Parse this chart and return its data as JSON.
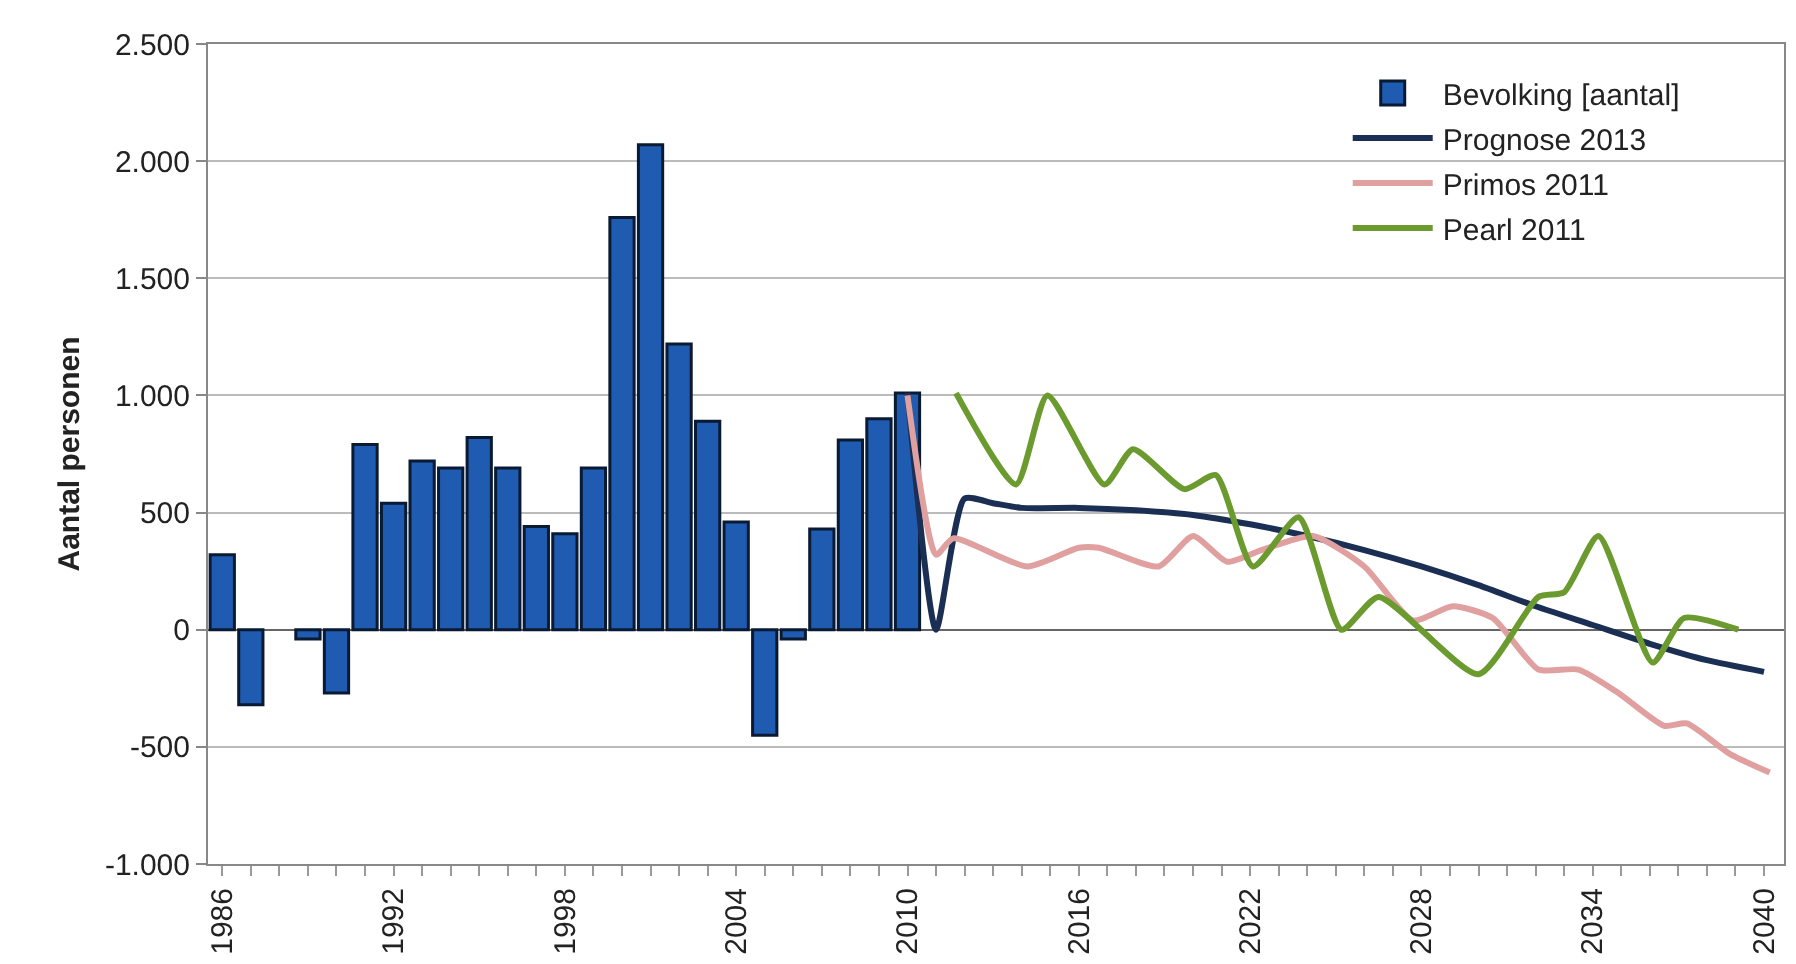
{
  "chart_data": {
    "type": "bar",
    "ylabel": "Aantal personen",
    "x": [
      1986,
      1987,
      1988,
      1989,
      1990,
      1991,
      1992,
      1993,
      1994,
      1995,
      1996,
      1997,
      1998,
      1999,
      2000,
      2001,
      2002,
      2003,
      2004,
      2005,
      2006,
      2007,
      2008,
      2009,
      2010
    ],
    "series": [
      {
        "name": "Bevolking [aantal]",
        "color": "#1f5bb0",
        "values": [
          320,
          -320,
          null,
          -40,
          -270,
          790,
          540,
          720,
          690,
          820,
          690,
          440,
          410,
          690,
          1760,
          2070,
          1220,
          890,
          460,
          -450,
          -40,
          430,
          810,
          900,
          1010
        ]
      },
      {
        "name": "Prognose 2013",
        "type": "line",
        "color": "#1b2f55",
        "x": [
          2010,
          2011,
          2012,
          2013,
          2014,
          2016,
          2018,
          2020,
          2022,
          2024,
          2026,
          2028,
          2030,
          2032,
          2034,
          2036,
          2038,
          2040
        ],
        "values": [
          1010,
          0,
          560,
          540,
          520,
          520,
          510,
          490,
          450,
          400,
          340,
          270,
          190,
          100,
          20,
          -60,
          -130,
          -180
        ]
      },
      {
        "name": "Primos 2011",
        "type": "line",
        "color": "#e0a0a0",
        "x": [
          2010,
          2011,
          2011.6,
          2014.2,
          2016,
          2016.7,
          2018.8,
          2020,
          2021.2,
          2022.4,
          2024.2,
          2026,
          2027.7,
          2029.1,
          2030.5,
          2032.1,
          2033.5,
          2034.9,
          2036.5,
          2037.3,
          2038.8,
          2040.2
        ],
        "values": [
          1000,
          320,
          390,
          270,
          350,
          350,
          270,
          400,
          290,
          340,
          400,
          270,
          40,
          100,
          50,
          -170,
          -170,
          -270,
          -410,
          -400,
          -530,
          -610
        ]
      },
      {
        "name": "Pearl 2011",
        "type": "line",
        "color": "#6b9a2e",
        "x": [
          2011.7,
          2013.8,
          2014.9,
          2016.9,
          2017.9,
          2019.7,
          2020.8,
          2022.1,
          2023.7,
          2025.2,
          2026.5,
          2030,
          2032.1,
          2033,
          2034.2,
          2036.1,
          2037.2,
          2039.1
        ],
        "values": [
          1010,
          620,
          1000,
          620,
          770,
          600,
          660,
          270,
          480,
          0,
          140,
          -190,
          140,
          160,
          400,
          -140,
          50,
          0
        ]
      }
    ],
    "xlim": [
      1985.5,
      2040.7
    ],
    "xticks": [
      {
        "value": 1986,
        "label": "1986"
      },
      {
        "value": 1987,
        "label": null
      },
      {
        "value": 1988,
        "label": null
      },
      {
        "value": 1989,
        "label": null
      },
      {
        "value": 1990,
        "label": null
      },
      {
        "value": 1991,
        "label": null
      },
      {
        "value": 1992,
        "label": "1992"
      },
      {
        "value": 1993,
        "label": null
      },
      {
        "value": 1994,
        "label": null
      },
      {
        "value": 1995,
        "label": null
      },
      {
        "value": 1996,
        "label": null
      },
      {
        "value": 1997,
        "label": null
      },
      {
        "value": 1998,
        "label": "1998"
      },
      {
        "value": 1999,
        "label": null
      },
      {
        "value": 2000,
        "label": null
      },
      {
        "value": 2001,
        "label": null
      },
      {
        "value": 2002,
        "label": null
      },
      {
        "value": 2003,
        "label": null
      },
      {
        "value": 2004,
        "label": "2004"
      },
      {
        "value": 2005,
        "label": null
      },
      {
        "value": 2006,
        "label": null
      },
      {
        "value": 2007,
        "label": null
      },
      {
        "value": 2008,
        "label": null
      },
      {
        "value": 2009,
        "label": null
      },
      {
        "value": 2010,
        "label": "2010"
      },
      {
        "value": 2011,
        "label": null
      },
      {
        "value": 2012,
        "label": null
      },
      {
        "value": 2013,
        "label": null
      },
      {
        "value": 2014,
        "label": null
      },
      {
        "value": 2015,
        "label": null
      },
      {
        "value": 2016,
        "label": "2016"
      },
      {
        "value": 2017,
        "label": null
      },
      {
        "value": 2018,
        "label": null
      },
      {
        "value": 2019,
        "label": null
      },
      {
        "value": 2020,
        "label": null
      },
      {
        "value": 2021,
        "label": null
      },
      {
        "value": 2022,
        "label": "2022"
      },
      {
        "value": 2023,
        "label": null
      },
      {
        "value": 2024,
        "label": null
      },
      {
        "value": 2025,
        "label": null
      },
      {
        "value": 2026,
        "label": null
      },
      {
        "value": 2027,
        "label": null
      },
      {
        "value": 2028,
        "label": "2028"
      },
      {
        "value": 2029,
        "label": null
      },
      {
        "value": 2030,
        "label": null
      },
      {
        "value": 2031,
        "label": null
      },
      {
        "value": 2032,
        "label": null
      },
      {
        "value": 2033,
        "label": null
      },
      {
        "value": 2034,
        "label": "2034"
      },
      {
        "value": 2035,
        "label": null
      },
      {
        "value": 2036,
        "label": null
      },
      {
        "value": 2037,
        "label": null
      },
      {
        "value": 2038,
        "label": null
      },
      {
        "value": 2039,
        "label": null
      },
      {
        "value": 2040,
        "label": "2040"
      }
    ],
    "ylim": [
      -1000,
      2500
    ],
    "yticks": [
      {
        "value": -1000,
        "label": "-1.000"
      },
      {
        "value": -500,
        "label": "-500"
      },
      {
        "value": 0,
        "label": "0"
      },
      {
        "value": 500,
        "label": "500"
      },
      {
        "value": 1000,
        "label": "1.000"
      },
      {
        "value": 1500,
        "label": "1.500"
      },
      {
        "value": 2000,
        "label": "2.000"
      },
      {
        "value": 2500,
        "label": "2.500"
      }
    ],
    "grid": "y",
    "legend": "top right",
    "line_style": "solid"
  }
}
